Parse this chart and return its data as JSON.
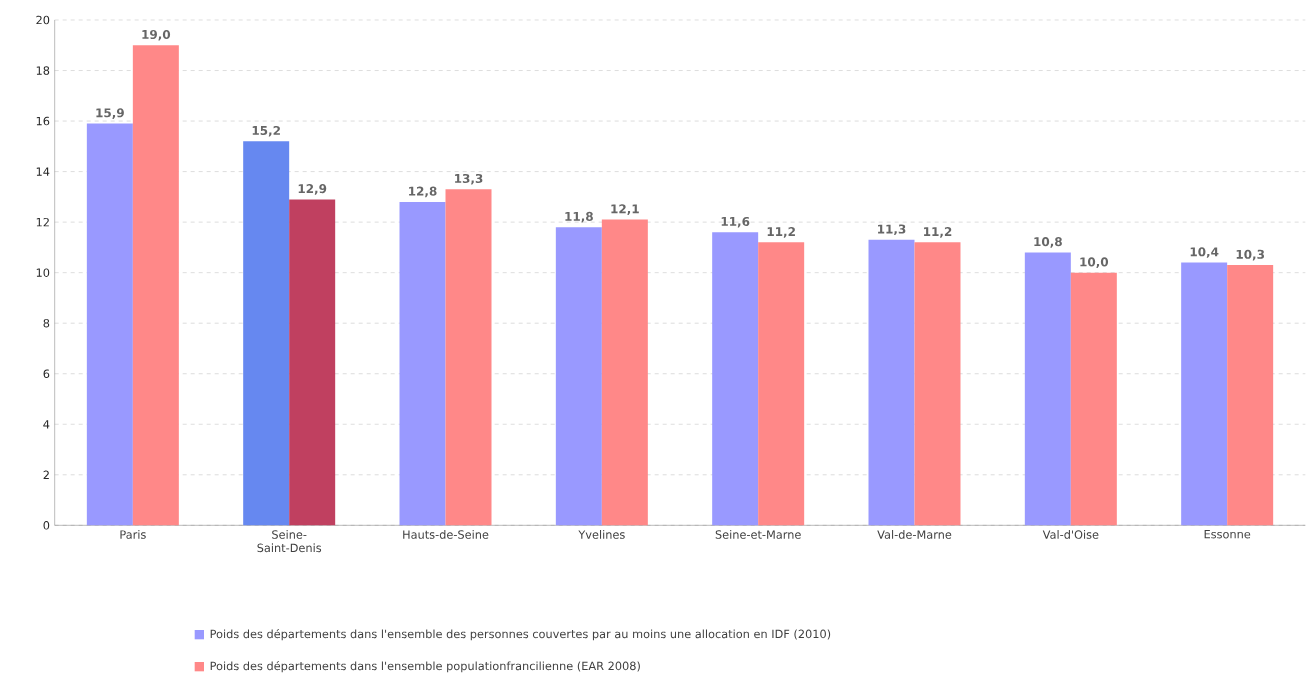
{
  "chart_data": {
    "type": "bar",
    "categories": [
      "Paris",
      "Seine-Saint-Denis",
      "Hauts-de-Seine",
      "Yvelines",
      "Seine-et-Marne",
      "Val-de-Marne",
      "Val-d'Oise",
      "Essonne"
    ],
    "series": [
      {
        "name": "Poids des départements dans l'ensemble des personnes couvertes par au moins une allocation en IDF (2010)",
        "colors": [
          "#9999ff",
          "#6688f0",
          "#9999ff",
          "#9999ff",
          "#9999ff",
          "#9999ff",
          "#9999ff",
          "#9999ff"
        ],
        "values": [
          15.9,
          15.2,
          12.8,
          11.8,
          11.6,
          11.3,
          10.8,
          10.4
        ],
        "value_labels": [
          "15,9",
          "15,2",
          "12,8",
          "11,8",
          "11,6",
          "11,3",
          "10,8",
          "10,4"
        ]
      },
      {
        "name": "Poids des départements dans l'ensemble populationfrancilienne (EAR 2008)",
        "colors": [
          "#ff8888",
          "#c04060",
          "#ff8888",
          "#ff8888",
          "#ff8888",
          "#ff8888",
          "#ff8888",
          "#ff8888"
        ],
        "values": [
          19.0,
          12.9,
          13.3,
          12.1,
          11.2,
          11.2,
          10.0,
          10.3
        ],
        "value_labels": [
          "19,0",
          "12,9",
          "13,3",
          "12,1",
          "11,2",
          "11,2",
          "10,0",
          "10,3"
        ]
      }
    ],
    "ylim": [
      0,
      20
    ],
    "yticks": [
      0,
      2,
      4,
      6,
      8,
      10,
      12,
      14,
      16,
      18,
      20
    ],
    "grid": "y",
    "legend": "bottom"
  }
}
